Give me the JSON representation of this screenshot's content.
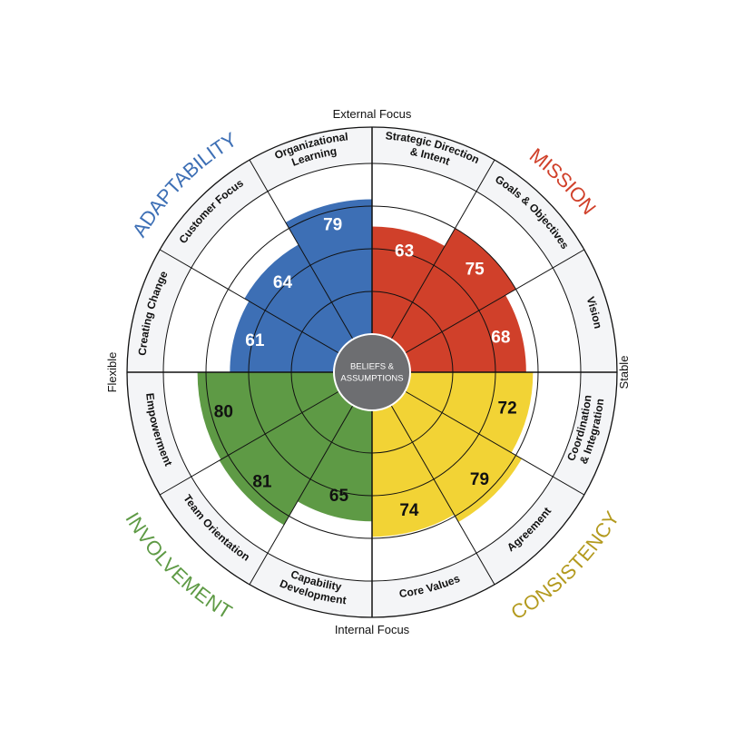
{
  "chart_data": {
    "type": "radial-bar",
    "axis_labels": {
      "top": "External Focus",
      "bottom": "Internal Focus",
      "left": "Flexible",
      "right": "Stable"
    },
    "center_label": [
      "BELIEFS &",
      "ASSUMPTIONS"
    ],
    "max_value": 100,
    "quadrants": [
      {
        "name": "ADAPTABILITY",
        "color": "#3d6fb5",
        "title_color": "#3d6fb5",
        "segments": [
          {
            "label": [
              "Creating Change"
            ],
            "value": 61
          },
          {
            "label": [
              "Customer Focus"
            ],
            "value": 64
          },
          {
            "label": [
              "Organizational",
              "Learning"
            ],
            "value": 79
          }
        ]
      },
      {
        "name": "MISSION",
        "color": "#d0402a",
        "title_color": "#d0402a",
        "segments": [
          {
            "label": [
              "Strategic Direction",
              "& Intent"
            ],
            "value": 63
          },
          {
            "label": [
              "Goals & Objectives"
            ],
            "value": 75
          },
          {
            "label": [
              "Vision"
            ],
            "value": 68
          }
        ]
      },
      {
        "name": "CONSISTENCY",
        "color": "#f2d335",
        "title_color": "#b39a1e",
        "segments": [
          {
            "label": [
              "Coordination",
              "& Integration"
            ],
            "value": 72
          },
          {
            "label": [
              "Agreement"
            ],
            "value": 79
          },
          {
            "label": [
              "Core Values"
            ],
            "value": 74
          }
        ]
      },
      {
        "name": "INVOLVEMENT",
        "color": "#5e9a45",
        "title_color": "#5e9a45",
        "segments": [
          {
            "label": [
              "Capability",
              "Development"
            ],
            "value": 65
          },
          {
            "label": [
              "Team Orientation"
            ],
            "value": 81
          },
          {
            "label": [
              "Empowerment"
            ],
            "value": 80
          }
        ]
      }
    ]
  }
}
